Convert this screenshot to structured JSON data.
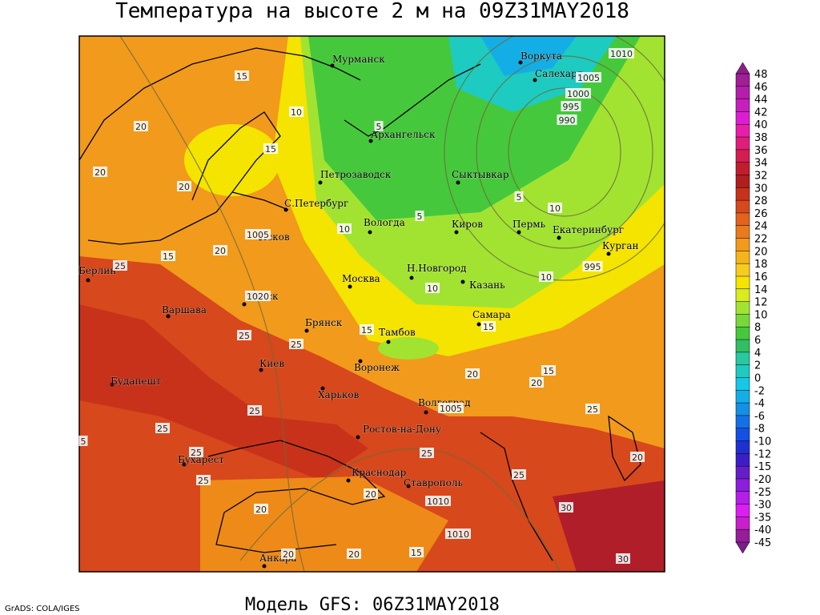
{
  "title": "Температура на высоте 2 м на 09Z31MAY2018",
  "model": "Модель GFS: 06Z31MAY2018",
  "credit": "GrADS: COLA/IGES",
  "cities": [
    "Мурманск",
    "Воркута",
    "Салехард",
    "Архангельск",
    "Петрозаводск",
    "Сыктывкар",
    "С.Петербург",
    "Вологда",
    "Киров",
    "Пермь",
    "Екатеринбург",
    "Курган",
    "Псков",
    "Берлин",
    "Москва",
    "Н.Новгород",
    "Казань",
    "Минск",
    "Варшава",
    "Самара",
    "Брянск",
    "Тамбов",
    "Киев",
    "Воронеж",
    "Будапешт",
    "Харьков",
    "Волгоград",
    "Ростов-на-Дону",
    "Бухарест",
    "Краснодар",
    "Ставрополь",
    "Анкара"
  ],
  "contour_labels": [
    1010,
    1005,
    1000,
    995,
    990,
    995,
    1005,
    1020,
    1005,
    1010,
    1010,
    15,
    20,
    20,
    20,
    15,
    10,
    5,
    15,
    20,
    25,
    10,
    5,
    5,
    10,
    10,
    10,
    15,
    15,
    25,
    25,
    20,
    15,
    20,
    25,
    25,
    25,
    25,
    25,
    25,
    20,
    20,
    25,
    30,
    20,
    30,
    20,
    20,
    15,
    5
  ],
  "colorbar": {
    "labels": [
      48,
      46,
      44,
      42,
      40,
      38,
      36,
      34,
      32,
      30,
      28,
      26,
      24,
      22,
      20,
      18,
      16,
      14,
      12,
      10,
      8,
      6,
      4,
      2,
      0,
      -2,
      -4,
      -6,
      -8,
      -10,
      -12,
      -15,
      -20,
      -25,
      -30,
      -35,
      -40,
      -45
    ],
    "colors": [
      "#a01e96",
      "#b41eaa",
      "#c81ebe",
      "#dc1ed2",
      "#e61eaa",
      "#e01e78",
      "#d21e50",
      "#c01e2c",
      "#b01e1e",
      "#c8321a",
      "#d7481c",
      "#e2621e",
      "#ea7a1e",
      "#f29a1c",
      "#f6b41c",
      "#f8cc1e",
      "#f4e400",
      "#d8ec1e",
      "#a2e332",
      "#78d83a",
      "#46c83c",
      "#32be64",
      "#28c8a0",
      "#1ecbc0",
      "#14c8e6",
      "#14aee6",
      "#1490e6",
      "#1470e6",
      "#1450e6",
      "#1e30d2",
      "#3c1ec8",
      "#641ec8",
      "#8c1edc",
      "#b41ee6",
      "#dc1ef0",
      "#c81ecc",
      "#961e9a"
    ]
  }
}
